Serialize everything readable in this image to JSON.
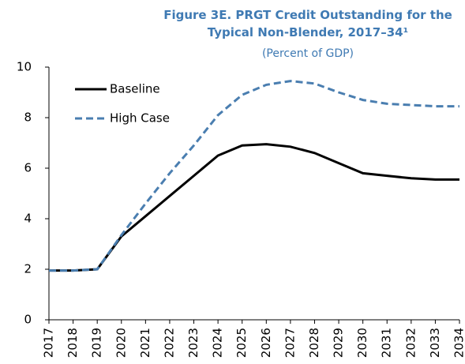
{
  "chart_data": {
    "type": "line",
    "title": "Figure 3E. PRGT Credit Outstanding for the Typical Non-Blender, 2017–34¹",
    "subtitle": "(Percent of GDP)",
    "categories": [
      "2017",
      "2018",
      "2019",
      "2020",
      "2021",
      "2022",
      "2023",
      "2024",
      "2025",
      "2026",
      "2027",
      "2028",
      "2029",
      "2030",
      "2031",
      "2032",
      "2033",
      "2034"
    ],
    "series": [
      {
        "name": "Baseline",
        "color": "#000000",
        "dash": "solid",
        "values": [
          1.95,
          1.95,
          2.0,
          3.3,
          4.1,
          4.9,
          5.7,
          6.5,
          6.9,
          6.95,
          6.85,
          6.6,
          6.2,
          5.8,
          5.7,
          5.6,
          5.55,
          5.55
        ]
      },
      {
        "name": "High Case",
        "color": "#4a7eb0",
        "dash": "dashed",
        "values": [
          1.95,
          1.95,
          2.0,
          3.35,
          4.6,
          5.8,
          6.9,
          8.1,
          8.9,
          9.3,
          9.45,
          9.35,
          9.0,
          8.7,
          8.55,
          8.5,
          8.45,
          8.45
        ]
      }
    ],
    "ylim": [
      0,
      10
    ],
    "yticks": [
      0,
      2,
      4,
      6,
      8,
      10
    ],
    "grid": false,
    "legend": "upper left"
  }
}
